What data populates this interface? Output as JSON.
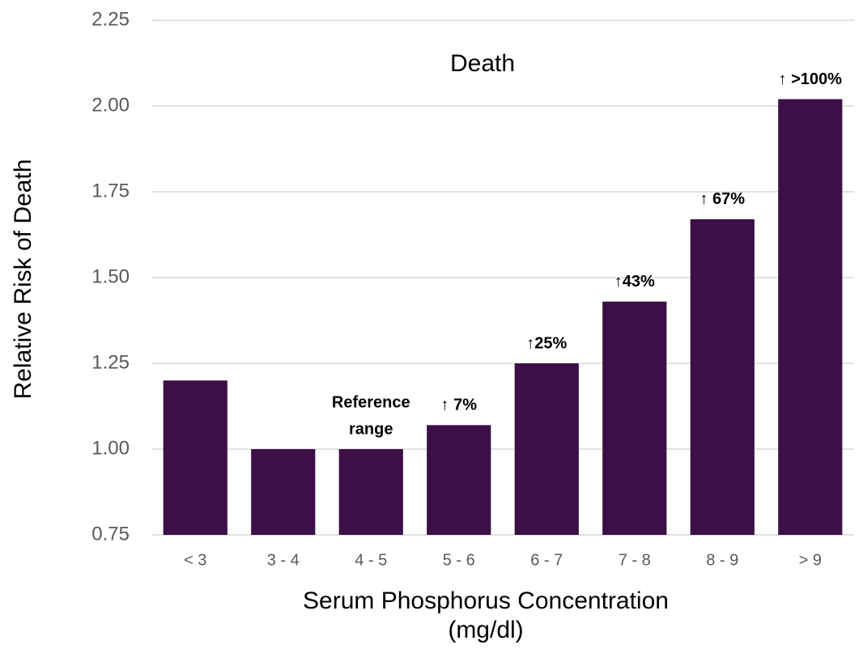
{
  "chart_data": {
    "type": "bar",
    "title": "Death",
    "ylabel": "Relative Risk of Death",
    "xlabel": [
      "Serum Phosphorus Concentration",
      "(mg/dl)"
    ],
    "categories": [
      "< 3",
      "3 - 4",
      "4 - 5",
      "5 - 6",
      "6 - 7",
      "7 - 8",
      "8 - 9",
      "> 9"
    ],
    "values": [
      1.2,
      1.0,
      1.0,
      1.07,
      1.25,
      1.43,
      1.67,
      2.02
    ],
    "color": "#3c1046",
    "ylim": [
      0.75,
      2.25
    ],
    "yticks": [
      {
        "value": 0.75,
        "label": "0.75"
      },
      {
        "value": 1,
        "label": "1.00"
      },
      {
        "value": 1.25,
        "label": "1.25"
      },
      {
        "value": 1.5,
        "label": "1.50"
      },
      {
        "value": 1.75,
        "label": "1.75"
      },
      {
        "value": 2,
        "label": "2.00"
      },
      {
        "value": 2.25,
        "label": "2.25"
      }
    ],
    "grid": true,
    "annotations": [
      {
        "lines": [
          "Reference",
          "range"
        ],
        "category": 2
      },
      {
        "lines": [
          "↑ 7%"
        ],
        "category": 3
      },
      {
        "lines": [
          "↑25%"
        ],
        "category": 4
      },
      {
        "lines": [
          "↑43%"
        ],
        "category": 5
      },
      {
        "lines": [
          "↑ 67%"
        ],
        "category": 6
      },
      {
        "lines": [
          "↑ >100%"
        ],
        "category": 7
      }
    ]
  }
}
